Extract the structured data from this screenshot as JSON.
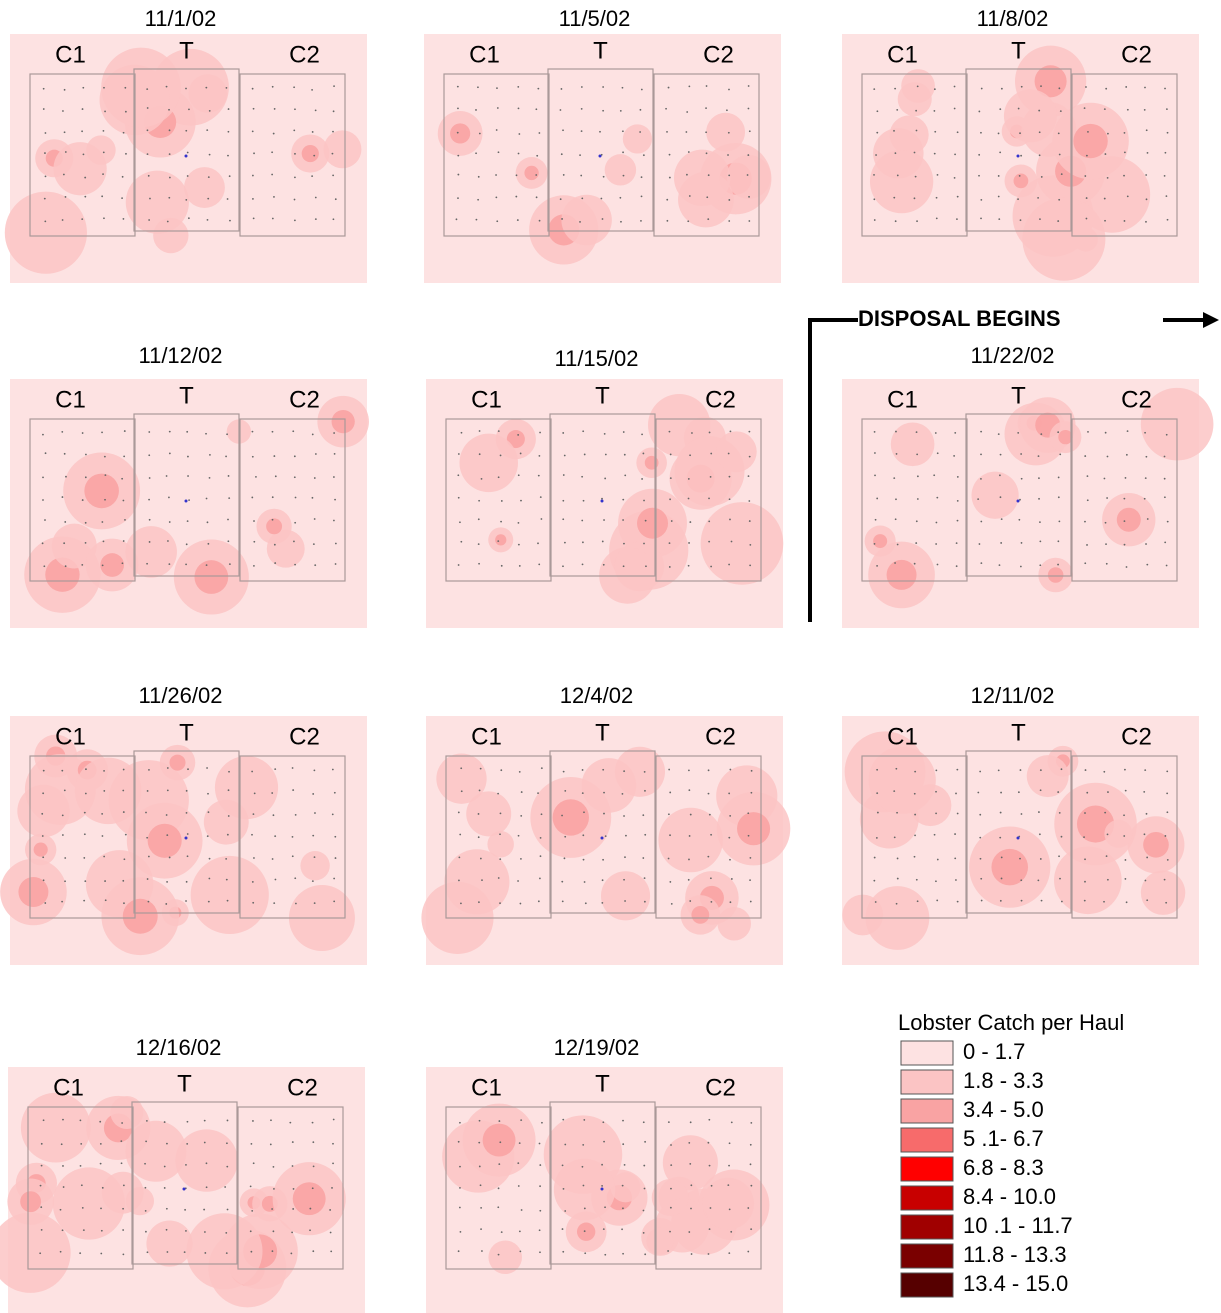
{
  "panels": [
    {
      "date": "11/1/02",
      "zones": [
        "C1",
        "T",
        "C2"
      ]
    },
    {
      "date": "11/5/02",
      "zones": [
        "C1",
        "T",
        "C2"
      ]
    },
    {
      "date": "11/8/02",
      "zones": [
        "C1",
        "T",
        "C2"
      ]
    },
    {
      "date": "11/12/02",
      "zones": [
        "C1",
        "T",
        "C2"
      ]
    },
    {
      "date": "11/15/02",
      "zones": [
        "C1",
        "T",
        "C2"
      ]
    },
    {
      "date": "11/22/02",
      "zones": [
        "C1",
        "T",
        "C2"
      ]
    },
    {
      "date": "11/26/02",
      "zones": [
        "C1",
        "T",
        "C2"
      ]
    },
    {
      "date": "12/4/02",
      "zones": [
        "C1",
        "T",
        "C2"
      ]
    },
    {
      "date": "12/11/02",
      "zones": [
        "C1",
        "T",
        "C2"
      ]
    },
    {
      "date": "12/16/02",
      "zones": [
        "C1",
        "T",
        "C2"
      ]
    },
    {
      "date": "12/19/02",
      "zones": [
        "C1",
        "T",
        "C2"
      ]
    }
  ],
  "annotation": "DISPOSAL BEGINS",
  "legend": {
    "title": "Lobster Catch per Haul",
    "items": [
      {
        "label": "0 - 1.7",
        "color": "#fde2e2"
      },
      {
        "label": "1.8 - 3.3",
        "color": "#fbc4c4"
      },
      {
        "label": "3.4 - 5.0",
        "color": "#f9a3a3"
      },
      {
        "label": "5 .1- 6.7",
        "color": "#f76b6b"
      },
      {
        "label": "6.8 - 8.3",
        "color": "#ff0000"
      },
      {
        "label": "8.4 - 10.0",
        "color": "#c80000"
      },
      {
        "label": "10 .1 - 11.7",
        "color": "#a00000"
      },
      {
        "label": "11.8 - 13.3",
        "color": "#7a0000"
      },
      {
        "label": "13.4 - 15.0",
        "color": "#560000"
      }
    ]
  }
}
